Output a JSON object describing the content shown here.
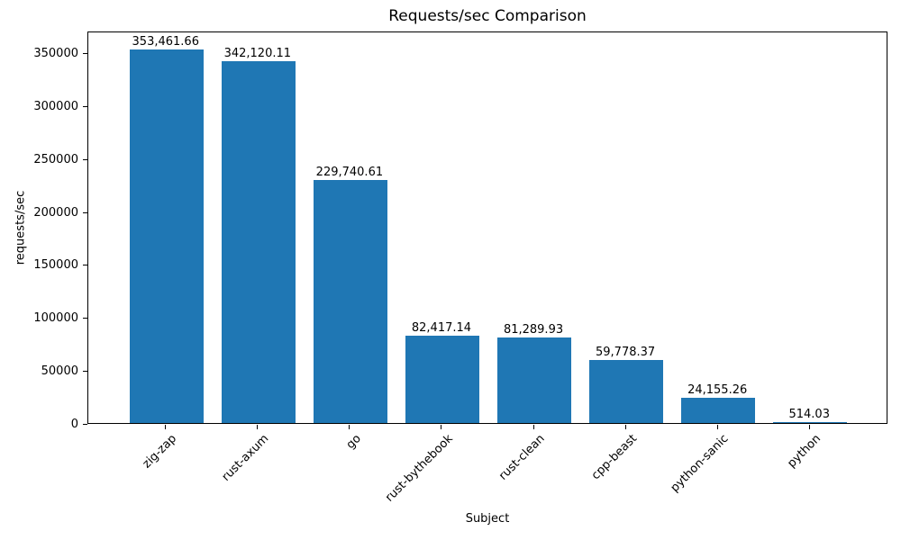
{
  "chart_data": {
    "type": "bar",
    "title": "Requests/sec Comparison",
    "xlabel": "Subject",
    "ylabel": "requests/sec",
    "categories": [
      "zig-zap",
      "rust-axum",
      "go",
      "rust-bythebook",
      "rust-clean",
      "cpp-beast",
      "python-sanic",
      "python"
    ],
    "values": [
      353461.66,
      342120.11,
      229740.61,
      82417.14,
      81289.93,
      59778.37,
      24155.26,
      514.03
    ],
    "value_labels": [
      "353,461.66",
      "342,120.11",
      "229,740.61",
      "82,417.14",
      "81,289.93",
      "59,778.37",
      "24,155.26",
      "514.03"
    ],
    "yticks": [
      0,
      50000,
      100000,
      150000,
      200000,
      250000,
      300000,
      350000
    ],
    "ytick_labels": [
      "0",
      "50000",
      "100000",
      "150000",
      "200000",
      "250000",
      "300000",
      "350000"
    ],
    "ylim": [
      0,
      371135
    ],
    "bar_color": "#1f77b4",
    "text_color": "#000000",
    "grid": false,
    "legend": "none",
    "xtick_rotation_deg": 45
  }
}
